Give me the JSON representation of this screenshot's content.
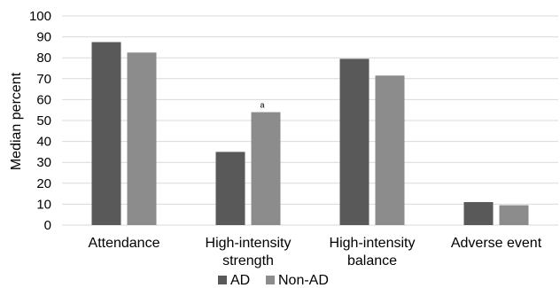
{
  "chart_data": {
    "type": "bar",
    "title": "",
    "xlabel": "",
    "ylabel": "Median percent",
    "ylim": [
      0,
      100
    ],
    "yticks": [
      0,
      10,
      20,
      30,
      40,
      50,
      60,
      70,
      80,
      90,
      100
    ],
    "grid": true,
    "legend_position": "bottom",
    "categories": [
      [
        "Attendance"
      ],
      [
        "High-intensity",
        "strength"
      ],
      [
        "High-intensity",
        "balance"
      ],
      [
        "Adverse event"
      ]
    ],
    "series": [
      {
        "name": "AD",
        "color": "#595959",
        "values": [
          87.5,
          35,
          79.5,
          11
        ]
      },
      {
        "name": "Non-AD",
        "color": "#8c8c8c",
        "values": [
          82.5,
          54,
          71.5,
          9.5
        ]
      }
    ],
    "annotations": [
      {
        "text": "a",
        "category_index": 1,
        "series_index": 1
      }
    ]
  }
}
